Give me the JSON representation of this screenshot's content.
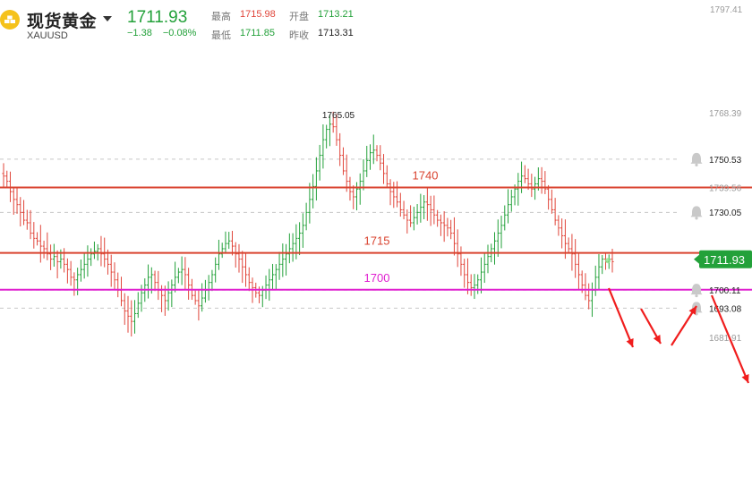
{
  "header": {
    "title": "现货黄金",
    "symbol": "XAUUSD",
    "price": "1711.93",
    "change": "−1.38",
    "change_pct": "−0.08%",
    "stats": {
      "high_label": "最高",
      "high": "1715.98",
      "open_label": "开盘",
      "open": "1713.21",
      "low_label": "最低",
      "low": "1711.85",
      "prev_close_label": "昨收",
      "prev_close": "1713.31"
    }
  },
  "colors": {
    "up": "#23a13a",
    "down": "#e0453a",
    "level_line": "#d9432f",
    "support_line": "#e020d0",
    "arrow": "#f01d1d"
  },
  "chart_data": {
    "type": "bar",
    "subtype": "ohlc",
    "ylim": [
      1676,
      1779
    ],
    "axis_ticks": [
      "1768.39",
      "1750.53",
      "1739.56",
      "1730.05",
      "1700.11",
      "1693.08",
      "1681.91"
    ],
    "top_tick_partial": "1797.41",
    "max_marker": "1765.05",
    "current_price": "1711.93",
    "price_lines": [
      {
        "name": "1740",
        "value": 1739.6
      },
      {
        "name": "1715",
        "value": 1714.4
      },
      {
        "name": "1700",
        "value": 1700.2
      }
    ],
    "alert_levels": [
      1750.5,
      1730.0,
      1700.1,
      1693.1
    ],
    "series": [
      {
        "name": "",
        "values": [
          1744,
          1742,
          1738,
          1735,
          1733,
          1730,
          1727,
          1726,
          1722,
          1720,
          1719,
          1717,
          1716,
          1714,
          1712,
          1713,
          1711,
          1712,
          1710,
          1708,
          1705,
          1704,
          1706,
          1708,
          1710,
          1712,
          1714,
          1715,
          1716,
          1714,
          1712,
          1710,
          1707,
          1704,
          1700,
          1696,
          1692,
          1690,
          1688,
          1691,
          1695,
          1699,
          1702,
          1705,
          1706,
          1703,
          1700,
          1698,
          1696,
          1699,
          1702,
          1705,
          1707,
          1708,
          1706,
          1702,
          1698,
          1696,
          1694,
          1697,
          1700,
          1703,
          1706,
          1710,
          1714,
          1716,
          1718,
          1719,
          1717,
          1714,
          1712,
          1709,
          1706,
          1703,
          1701,
          1699,
          1698,
          1700,
          1702,
          1704,
          1706,
          1708,
          1710,
          1712,
          1714,
          1716,
          1718,
          1720,
          1722,
          1725,
          1730,
          1735,
          1740,
          1746,
          1752,
          1758,
          1762,
          1764,
          1763,
          1758,
          1752,
          1746,
          1742,
          1738,
          1736,
          1739,
          1742,
          1746,
          1750,
          1753,
          1754,
          1752,
          1749,
          1745,
          1741,
          1738,
          1736,
          1734,
          1731,
          1729,
          1727,
          1726,
          1728,
          1730,
          1732,
          1734,
          1733,
          1731,
          1729,
          1727,
          1726,
          1725,
          1724,
          1722,
          1718,
          1714,
          1710,
          1706,
          1703,
          1701,
          1702,
          1704,
          1707,
          1710,
          1713,
          1716,
          1719,
          1722,
          1725,
          1729,
          1733,
          1736,
          1739,
          1742,
          1744,
          1743,
          1741,
          1739,
          1741,
          1743,
          1742,
          1739,
          1735,
          1731,
          1727,
          1724,
          1721,
          1718,
          1716,
          1714,
          1710,
          1706,
          1702,
          1698,
          1696,
          1700,
          1705,
          1709,
          1712,
          1711,
          1712,
          1711
        ]
      }
    ]
  }
}
